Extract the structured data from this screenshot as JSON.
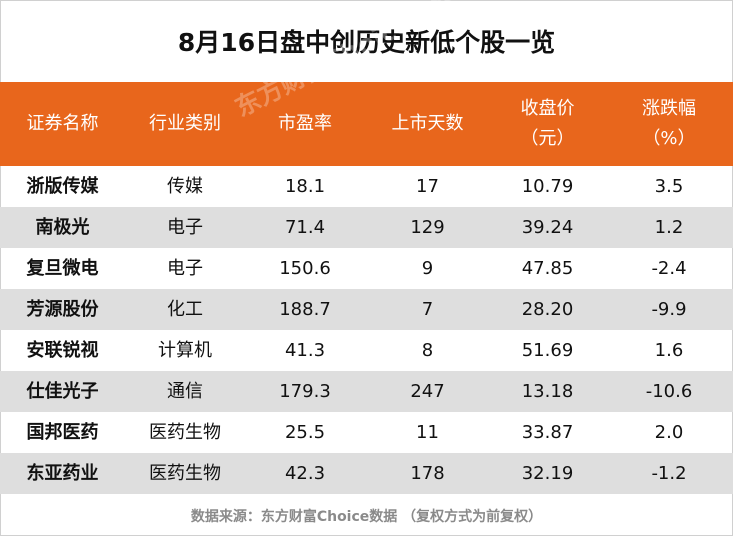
{
  "title": "8月16日盘中创历史新低个股一览",
  "watermark": "东方财富Choice数据",
  "header": {
    "col_name": "证券名称",
    "col_industry": "行业类别",
    "col_pe": "市盈率",
    "col_days": "上市天数",
    "col_close_line1": "收盘价",
    "col_close_line2": "（元）",
    "col_change_line1": "涨跌幅",
    "col_change_line2": "（%）"
  },
  "rows": [
    {
      "name": "浙版传媒",
      "industry": "传媒",
      "pe": "18.1",
      "days": "17",
      "close": "10.79",
      "change": "3.5"
    },
    {
      "name": "南极光",
      "industry": "电子",
      "pe": "71.4",
      "days": "129",
      "close": "39.24",
      "change": "1.2"
    },
    {
      "name": "复旦微电",
      "industry": "电子",
      "pe": "150.6",
      "days": "9",
      "close": "47.85",
      "change": "-2.4"
    },
    {
      "name": "芳源股份",
      "industry": "化工",
      "pe": "188.7",
      "days": "7",
      "close": "28.20",
      "change": "-9.9"
    },
    {
      "name": "安联锐视",
      "industry": "计算机",
      "pe": "41.3",
      "days": "8",
      "close": "51.69",
      "change": "1.6"
    },
    {
      "name": "仕佳光子",
      "industry": "通信",
      "pe": "179.3",
      "days": "247",
      "close": "13.18",
      "change": "-10.6"
    },
    {
      "name": "国邦医药",
      "industry": "医药生物",
      "pe": "25.5",
      "days": "11",
      "close": "33.87",
      "change": "2.0"
    },
    {
      "name": "东亚药业",
      "industry": "医药生物",
      "pe": "42.3",
      "days": "178",
      "close": "32.19",
      "change": "-1.2"
    }
  ],
  "footer": "数据来源：东方财富Choice数据 （复权方式为前复权）",
  "colors": {
    "header_bg": "#e8661c",
    "stripe_bg": "#dedede",
    "footer_text": "#8a8a8a"
  }
}
